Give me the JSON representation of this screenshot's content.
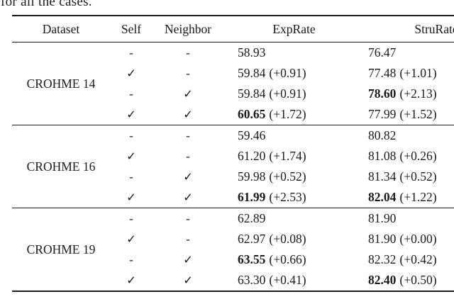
{
  "caption": {
    "text": "for all the cases."
  },
  "table": {
    "headers": [
      "Dataset",
      "Self",
      "Neighbor",
      "ExpRate",
      "StruRate"
    ],
    "check_glyph": "✓",
    "dash_glyph": "-",
    "groups": [
      {
        "dataset": "CROHME 14",
        "rows": [
          {
            "self": "-",
            "neighbor": "-",
            "exprate": {
              "value": "58.93",
              "delta": "",
              "bold": false
            },
            "strurate": {
              "value": "76.47",
              "delta": "",
              "bold": false
            }
          },
          {
            "self": "✓",
            "neighbor": "-",
            "exprate": {
              "value": "59.84",
              "delta": "(+0.91)",
              "bold": false
            },
            "strurate": {
              "value": "77.48",
              "delta": "(+1.01)",
              "bold": false
            }
          },
          {
            "self": "-",
            "neighbor": "✓",
            "exprate": {
              "value": "59.84",
              "delta": "(+0.91)",
              "bold": false
            },
            "strurate": {
              "value": "78.60",
              "delta": "(+2.13)",
              "bold": true
            }
          },
          {
            "self": "✓",
            "neighbor": "✓",
            "exprate": {
              "value": "60.65",
              "delta": "(+1.72)",
              "bold": true
            },
            "strurate": {
              "value": "77.99",
              "delta": "(+1.52)",
              "bold": false
            }
          }
        ]
      },
      {
        "dataset": "CROHME 16",
        "rows": [
          {
            "self": "-",
            "neighbor": "-",
            "exprate": {
              "value": "59.46",
              "delta": "",
              "bold": false
            },
            "strurate": {
              "value": "80.82",
              "delta": "",
              "bold": false
            }
          },
          {
            "self": "✓",
            "neighbor": "-",
            "exprate": {
              "value": "61.20",
              "delta": "(+1.74)",
              "bold": false
            },
            "strurate": {
              "value": "81.08",
              "delta": "(+0.26)",
              "bold": false
            }
          },
          {
            "self": "-",
            "neighbor": "✓",
            "exprate": {
              "value": "59.98",
              "delta": "(+0.52)",
              "bold": false
            },
            "strurate": {
              "value": "81.34",
              "delta": "(+0.52)",
              "bold": false
            }
          },
          {
            "self": "✓",
            "neighbor": "✓",
            "exprate": {
              "value": "61.99",
              "delta": "(+2.53)",
              "bold": true
            },
            "strurate": {
              "value": "82.04",
              "delta": "(+1.22)",
              "bold": true
            }
          }
        ]
      },
      {
        "dataset": "CROHME 19",
        "rows": [
          {
            "self": "-",
            "neighbor": "-",
            "exprate": {
              "value": "62.89",
              "delta": "",
              "bold": false
            },
            "strurate": {
              "value": "81.90",
              "delta": "",
              "bold": false
            }
          },
          {
            "self": "✓",
            "neighbor": "-",
            "exprate": {
              "value": "62.97",
              "delta": "(+0.08)",
              "bold": false
            },
            "strurate": {
              "value": "81.90",
              "delta": "(+0.00)",
              "bold": false
            }
          },
          {
            "self": "-",
            "neighbor": "✓",
            "exprate": {
              "value": "63.55",
              "delta": "(+0.66)",
              "bold": true
            },
            "strurate": {
              "value": "82.32",
              "delta": "(+0.42)",
              "bold": false
            }
          },
          {
            "self": "✓",
            "neighbor": "✓",
            "exprate": {
              "value": "63.30",
              "delta": "(+0.41)",
              "bold": false
            },
            "strurate": {
              "value": "82.40",
              "delta": "(+0.50)",
              "bold": true
            }
          }
        ]
      }
    ]
  }
}
